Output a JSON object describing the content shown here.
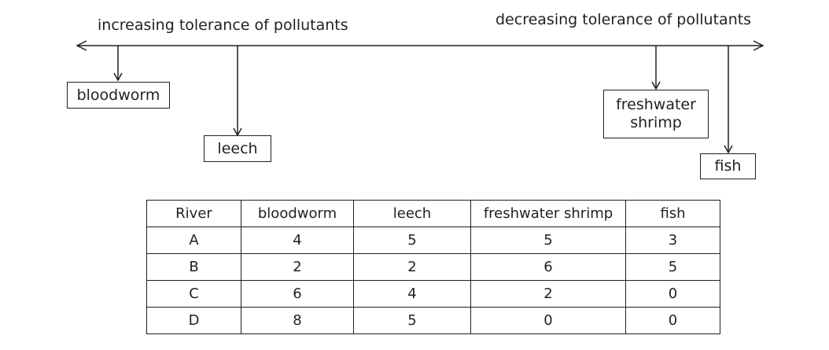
{
  "axis": {
    "left_label": "increasing tolerance of pollutants",
    "right_label": "decreasing tolerance of pollutants"
  },
  "organisms": {
    "bloodworm": "bloodworm",
    "leech": "leech",
    "shrimp_line1": "freshwater",
    "shrimp_line2": "shrimp",
    "fish": "fish"
  },
  "table": {
    "headers": [
      "River",
      "bloodworm",
      "leech",
      "freshwater shrimp",
      "fish"
    ],
    "rows": [
      [
        "A",
        "4",
        "5",
        "5",
        "3"
      ],
      [
        "B",
        "2",
        "2",
        "6",
        "5"
      ],
      [
        "C",
        "6",
        "4",
        "2",
        "0"
      ],
      [
        "D",
        "8",
        "5",
        "0",
        "0"
      ]
    ]
  },
  "colors": {
    "ink": "#231f20",
    "background": "#ffffff"
  }
}
